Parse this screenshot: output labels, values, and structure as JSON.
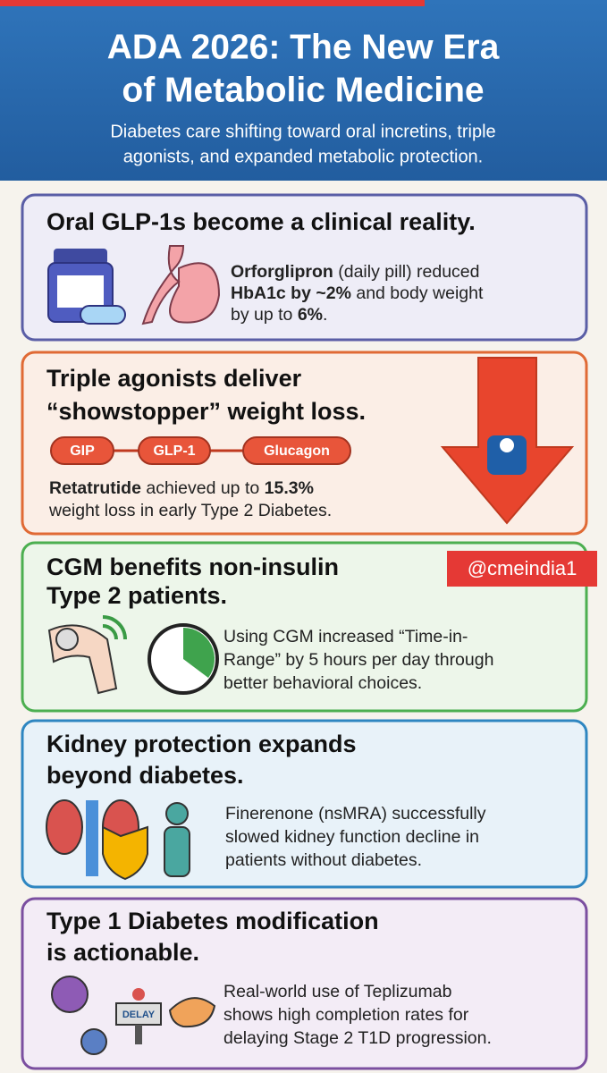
{
  "header": {
    "title_lines": [
      "ADA 2026: The New Era",
      "of Metabolic Medicine"
    ],
    "subtitle_lines": [
      "Diabetes care shifting toward oral incretins, triple",
      "agonists, and expanded metabolic protection."
    ]
  },
  "cards": [
    {
      "title_lines": [
        "Oral GLP-1s become a clinical reality."
      ],
      "body_lines": [
        [
          {
            "text": "Orforglipron",
            "bold": true
          },
          {
            "text": " (daily pill) reduced",
            "bold": false
          }
        ],
        [
          {
            "text": "HbA1c by ~2%",
            "bold": true
          },
          {
            "text": " and body weight",
            "bold": false
          }
        ],
        [
          {
            "text": "by up to ",
            "bold": false
          },
          {
            "text": "6%",
            "bold": true
          },
          {
            "text": ".",
            "bold": false
          }
        ]
      ]
    },
    {
      "title_lines": [
        "Triple agonists deliver",
        "“showstopper” weight loss."
      ],
      "tags": [
        "GIP",
        "GLP-1",
        "Glucagon"
      ],
      "body_lines": [
        [
          {
            "text": "Retatrutide",
            "bold": true
          },
          {
            "text": " achieved up to ",
            "bold": false
          },
          {
            "text": "15.3%",
            "bold": true
          }
        ],
        [
          {
            "text": "weight loss in early Type 2 Diabetes.",
            "bold": false
          }
        ]
      ]
    },
    {
      "title_lines": [
        "CGM benefits non-insulin",
        "Type 2 patients."
      ],
      "body_lines": [
        [
          {
            "text": "Using CGM increased “Time-in-",
            "bold": false
          }
        ],
        [
          {
            "text": "Range” by 5 hours per day through",
            "bold": false
          }
        ],
        [
          {
            "text": "better behavioral choices.",
            "bold": false
          }
        ]
      ]
    },
    {
      "title_lines": [
        "Kidney protection expands",
        "beyond diabetes."
      ],
      "body_lines": [
        [
          {
            "text": "Finerenone (nsMRA) successfully",
            "bold": false
          }
        ],
        [
          {
            "text": "slowed kidney function decline in",
            "bold": false
          }
        ],
        [
          {
            "text": "patients without diabetes.",
            "bold": false
          }
        ]
      ]
    },
    {
      "title_lines": [
        "Type 1 Diabetes modification",
        "is actionable."
      ],
      "icon_label": "DELAY",
      "body_lines": [
        [
          {
            "text": "Real-world use of Teplizumab",
            "bold": false
          }
        ],
        [
          {
            "text": "shows high completion rates for",
            "bold": false
          }
        ],
        [
          {
            "text": "delaying Stage 2 T1D progression.",
            "bold": false
          }
        ]
      ]
    }
  ],
  "watermark": "@cmeindia1"
}
